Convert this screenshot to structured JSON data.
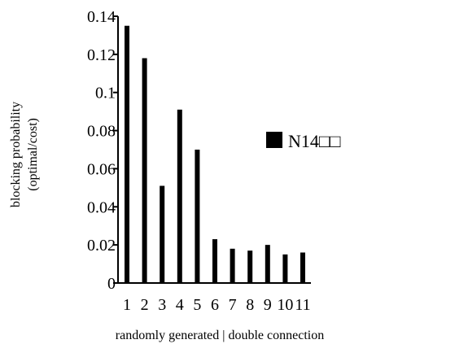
{
  "chart_data": {
    "type": "bar",
    "categories": [
      "1",
      "2",
      "3",
      "4",
      "5",
      "6",
      "7",
      "8",
      "9",
      "10",
      "11"
    ],
    "series": [
      {
        "name": "N14□□",
        "values": [
          0.135,
          0.118,
          0.051,
          0.091,
          0.07,
          0.023,
          0.018,
          0.017,
          0.02,
          0.015,
          0.016
        ]
      }
    ],
    "title": "",
    "xlabel": "randomly generated | double connection",
    "ylabel_lines": [
      "blocking probability",
      "(optimal/cost)"
    ],
    "ylim": [
      0,
      0.14
    ],
    "yticks": [
      "0",
      "0.02",
      "0.04",
      "0.06",
      "0.08",
      "0.1",
      "0.12",
      "0.14"
    ],
    "grid": false,
    "legend_position": "center-right",
    "bar_color": "#000000"
  }
}
